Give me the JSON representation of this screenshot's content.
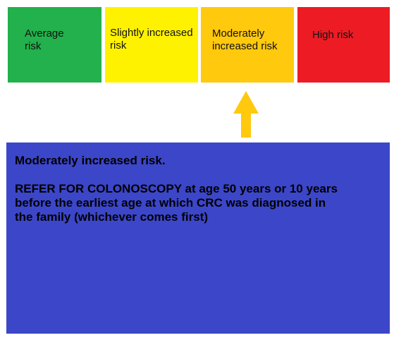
{
  "risk_scale": {
    "levels": [
      {
        "label": "Average\nrisk",
        "color": "#22b14c"
      },
      {
        "label": "Slightly increased\nrisk",
        "color": "#fff200"
      },
      {
        "label": "Moderately\nincreased risk",
        "color": "#ffc90e"
      },
      {
        "label": "High risk",
        "color": "#ed1c24"
      }
    ],
    "selected_index": 2,
    "indicator_icon": "arrow-up-icon",
    "indicator_color": "#ffc90e"
  },
  "result": {
    "heading": "Moderately increased risk.",
    "recommendation": "REFER FOR COLONOSCOPY at age 50 years or 10 years before the earliest age at which CRC was diagnosed in the family (whichever comes first)",
    "background_color": "#3c46c8"
  }
}
